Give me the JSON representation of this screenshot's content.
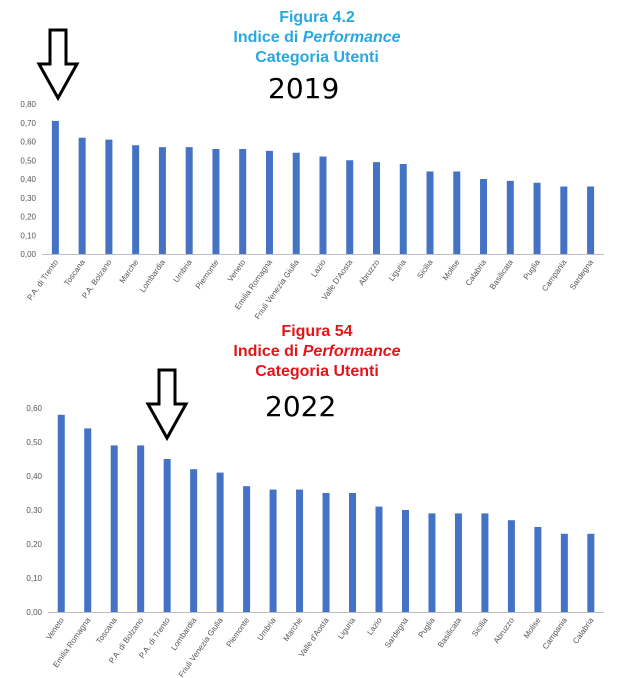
{
  "figures": [
    {
      "title_line1": "Figura 4.2",
      "title_line2_prefix": "Indice di ",
      "title_line2_italic": "Performance",
      "title_line3": "Categoria Utenti",
      "year": "2019",
      "color": "#29a8e0"
    },
    {
      "title_line1": "Figura 54",
      "title_line2_prefix": "Indice di ",
      "title_line2_italic": "Performance",
      "title_line3": "Categoria Utenti",
      "year": "2022",
      "color": "#e3151b"
    }
  ],
  "bar_color": "#4472c4",
  "chart_data": [
    {
      "type": "bar",
      "title": "Figura 4.2 Indice di Performance Categoria Utenti 2019",
      "categories": [
        "P.A. di Trento",
        "Toscana",
        "P.A. Bolzano",
        "Marche",
        "Lombardia",
        "Umbria",
        "Piemonte",
        "Veneto",
        "Emilia Romagna",
        "Friuli Venezia Giulia",
        "Lazio",
        "Valle D'Aosta",
        "Abruzzo",
        "Liguria",
        "Sicilia",
        "Molise",
        "Calabria",
        "Basilicata",
        "Puglia",
        "Campania",
        "Sardegna"
      ],
      "values": [
        0.71,
        0.62,
        0.61,
        0.58,
        0.57,
        0.57,
        0.56,
        0.56,
        0.55,
        0.54,
        0.52,
        0.5,
        0.49,
        0.48,
        0.44,
        0.44,
        0.4,
        0.39,
        0.38,
        0.36,
        0.36
      ],
      "yticks": [
        "0,00",
        "0,10",
        "0,20",
        "0,30",
        "0,40",
        "0,50",
        "0,60",
        "0,70",
        "0,80"
      ],
      "ylim": [
        0,
        0.8
      ],
      "highlight": "P.A. di Trento"
    },
    {
      "type": "bar",
      "title": "Figura 54 Indice di Performance Categoria Utenti 2022",
      "categories": [
        "Veneto",
        "Emilia Romagna",
        "Toscana",
        "P.A. di Bolzano",
        "P.A. di Trento",
        "Lombardia",
        "Friuli Venezia Giulia",
        "Piemonte",
        "Umbria",
        "Marche",
        "Valle d'Aosta",
        "Liguria",
        "Lazio",
        "Sardegna",
        "Puglia",
        "Basilicata",
        "Sicilia",
        "Abruzzo",
        "Molise",
        "Campania",
        "Calabria"
      ],
      "values": [
        0.58,
        0.54,
        0.49,
        0.49,
        0.45,
        0.42,
        0.41,
        0.37,
        0.36,
        0.36,
        0.35,
        0.35,
        0.31,
        0.3,
        0.29,
        0.29,
        0.29,
        0.27,
        0.25,
        0.23,
        0.23
      ],
      "yticks": [
        "0,00",
        "0,10",
        "0,20",
        "0,30",
        "0,40",
        "0,50",
        "0,60"
      ],
      "ylim": [
        0,
        0.6
      ],
      "highlight": "P.A. di Trento"
    }
  ]
}
